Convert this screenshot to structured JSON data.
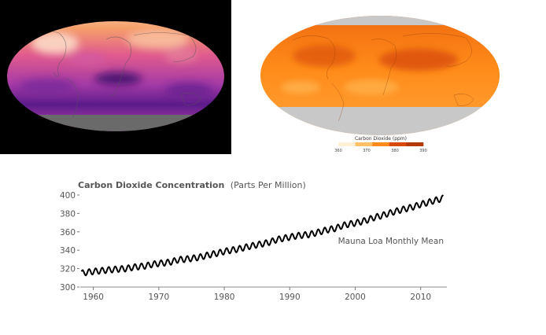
{
  "maps": {
    "left": {
      "colormap": [
        "#2b0a52",
        "#5b1b8a",
        "#a33aa6",
        "#e05a8e",
        "#f6a06a",
        "#fde9d9"
      ],
      "land_color": "#d6d6d6",
      "no_data_color": "#6a6a6a"
    },
    "right": {
      "colormap": [
        "#fff2dc",
        "#ffc36b",
        "#ff8c1a",
        "#f06a10",
        "#c9420a"
      ],
      "no_data_color": "#c8c8c8"
    }
  },
  "legend": {
    "title": "Carbon Dioxide (ppm)",
    "ticks": [
      "360",
      "370",
      "380",
      "390"
    ],
    "colors": [
      "#fff0d8",
      "#ffc066",
      "#ff8a1c",
      "#d9480b",
      "#b33a08"
    ]
  },
  "chart_data": {
    "type": "line",
    "title": "Carbon Dioxide Concentration",
    "subtitle": "(Parts Per Million)",
    "series_label": "Mauna Loa Monthly Mean",
    "x_ticks": [
      "1960",
      "1970",
      "1980",
      "1990",
      "2000",
      "2010"
    ],
    "y_ticks": [
      "300",
      "320",
      "340",
      "360",
      "380",
      "400"
    ],
    "xlim": [
      1958,
      2014
    ],
    "ylim": [
      300,
      400
    ],
    "line_color": "#000000",
    "series": [
      {
        "values_x": [
          1958.2,
          1959,
          1960,
          1961,
          1962,
          1963,
          1964,
          1965,
          1966,
          1967,
          1968,
          1969,
          1970,
          1971,
          1972,
          1973,
          1974,
          1975,
          1976,
          1977,
          1978,
          1979,
          1980,
          1981,
          1982,
          1983,
          1984,
          1985,
          1986,
          1987,
          1988,
          1989,
          1990,
          1991,
          1992,
          1993,
          1994,
          1995,
          1996,
          1997,
          1998,
          1999,
          2000,
          2001,
          2002,
          2003,
          2004,
          2005,
          2006,
          2007,
          2008,
          2009,
          2010,
          2011,
          2012,
          2013.5
        ],
        "values_y": [
          315.0,
          316.0,
          316.9,
          317.6,
          318.4,
          319.0,
          319.6,
          320.0,
          321.4,
          322.2,
          323.0,
          324.6,
          325.7,
          326.3,
          327.5,
          329.7,
          330.2,
          331.1,
          332.0,
          333.8,
          335.4,
          336.8,
          338.7,
          339.9,
          341.1,
          342.8,
          344.4,
          345.9,
          347.2,
          348.9,
          351.5,
          352.9,
          354.2,
          355.6,
          356.4,
          357.1,
          358.8,
          360.8,
          362.6,
          363.7,
          366.6,
          368.3,
          369.5,
          371.1,
          373.2,
          375.8,
          377.5,
          379.8,
          381.9,
          383.8,
          385.6,
          387.4,
          389.9,
          391.6,
          393.8,
          396.5
        ],
        "seasonal_amplitude": 3.2
      }
    ]
  }
}
